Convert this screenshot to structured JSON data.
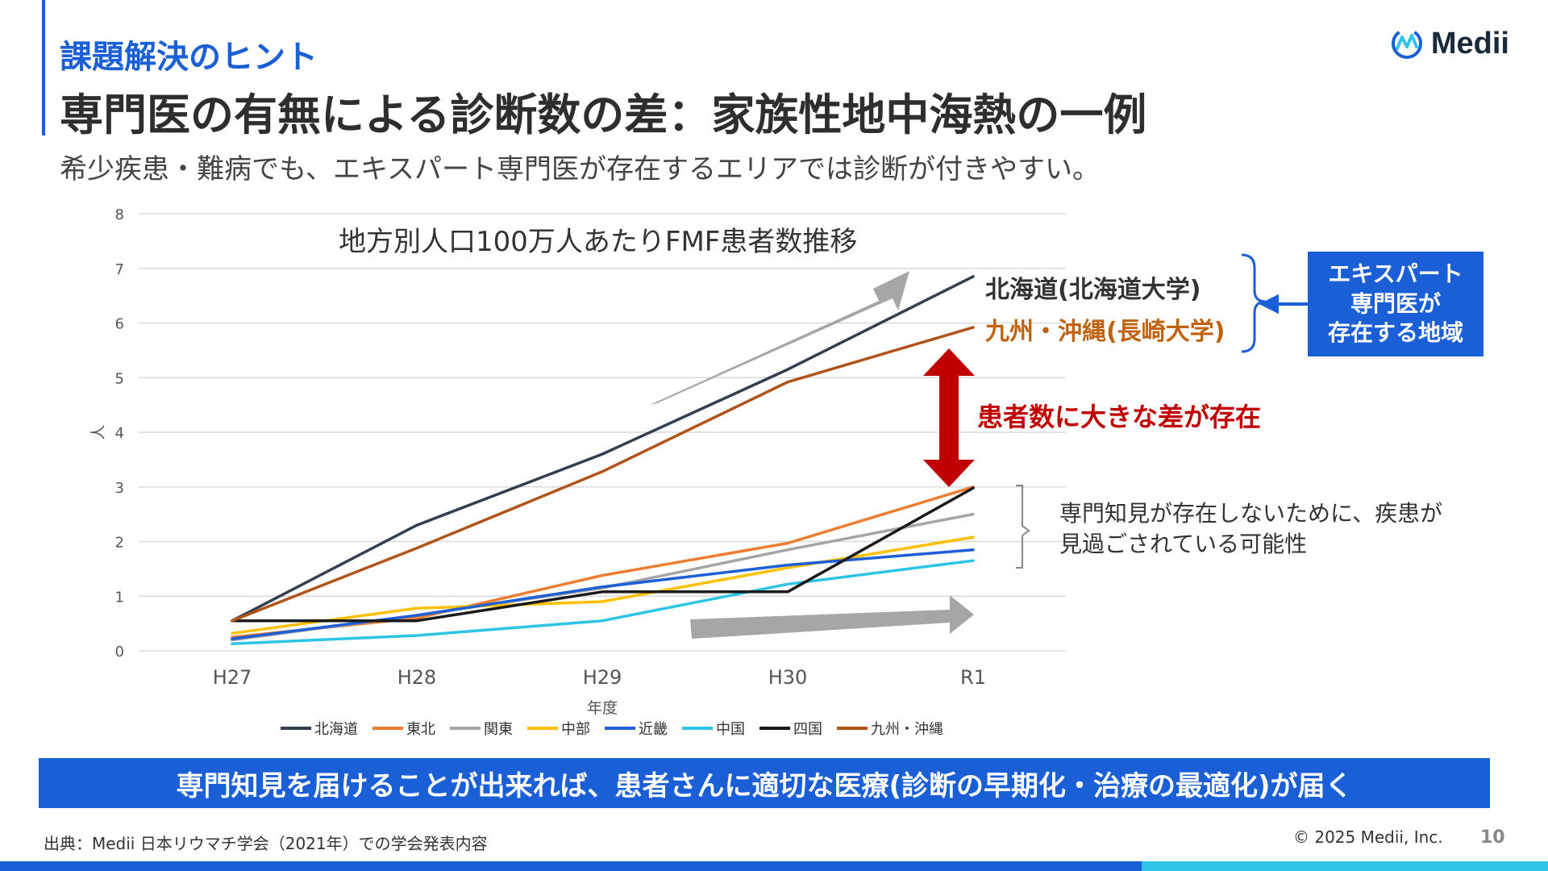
{
  "header": {
    "section_label": "課題解決のヒント",
    "title": "専門医の有無による診断数の差：家族性地中海熱の一例",
    "subtitle": "希少疾患・難病でも、エキスパート専門医が存在するエリアでは診断が付きやすい。"
  },
  "logo": {
    "text": "Medii",
    "icon": "medii-logo-icon"
  },
  "chart_data": {
    "type": "line",
    "title": "地方別人口100万人あたりFMF患者数推移",
    "xlabel": "年度",
    "ylabel": "人",
    "categories": [
      "H27",
      "H28",
      "H29",
      "H30",
      "R1"
    ],
    "ylim": [
      0,
      8
    ],
    "yticks": [
      "0",
      "1",
      "2",
      "3",
      "4",
      "5",
      "6",
      "7",
      "8"
    ],
    "grid": true,
    "legend_position": "bottom",
    "series": [
      {
        "name": "北海道",
        "color": "#333f4f",
        "values": [
          0.55,
          2.3,
          3.6,
          5.15,
          6.85
        ]
      },
      {
        "name": "東北",
        "color": "#ed7d31",
        "values": [
          0.25,
          0.6,
          1.38,
          1.97,
          3.0
        ]
      },
      {
        "name": "関東",
        "color": "#a5a5a5",
        "values": [
          0.2,
          0.65,
          1.15,
          1.85,
          2.5
        ]
      },
      {
        "name": "中部",
        "color": "#ffc000",
        "values": [
          0.32,
          0.78,
          0.9,
          1.52,
          2.08
        ]
      },
      {
        "name": "近畿",
        "color": "#1f5fd6",
        "values": [
          0.22,
          0.65,
          1.17,
          1.57,
          1.85
        ]
      },
      {
        "name": "中国",
        "color": "#2ec4e6",
        "values": [
          0.13,
          0.28,
          0.55,
          1.22,
          1.65
        ]
      },
      {
        "name": "四国",
        "color": "#1a1a1a",
        "values": [
          0.55,
          0.55,
          1.08,
          1.08,
          2.98
        ]
      },
      {
        "name": "九州・沖縄",
        "color": "#b0541a",
        "values": [
          0.55,
          1.88,
          3.28,
          4.92,
          5.92
        ]
      }
    ]
  },
  "annotations": {
    "hokkaido_label": "北海道(北海道大学)",
    "kyushu_label": "九州・沖縄(長崎大学)",
    "expert_box": "エキスパート\n専門医が\n存在する地域",
    "gap_label": "患者数に大きな差が存在",
    "missed_note": "専門知見が存在しないために、疾患が\n見過ごされている可能性"
  },
  "colors": {
    "accent": "#1a5fd6",
    "kyushu_label": "#c0620e",
    "gap_arrow": "#c00000",
    "trend_arrow": "#a6a6a6",
    "footer_secondary": "#2ec4e6"
  },
  "banner": "専門知見を届けることが出来れば、患者さんに適切な医療(診断の早期化・治療の最適化)が届く",
  "footer": {
    "source": "出典：Medii 日本リウマチ学会（2021年）での学会発表内容",
    "copyright": "© 2025 Medii, Inc.",
    "page": "10"
  }
}
